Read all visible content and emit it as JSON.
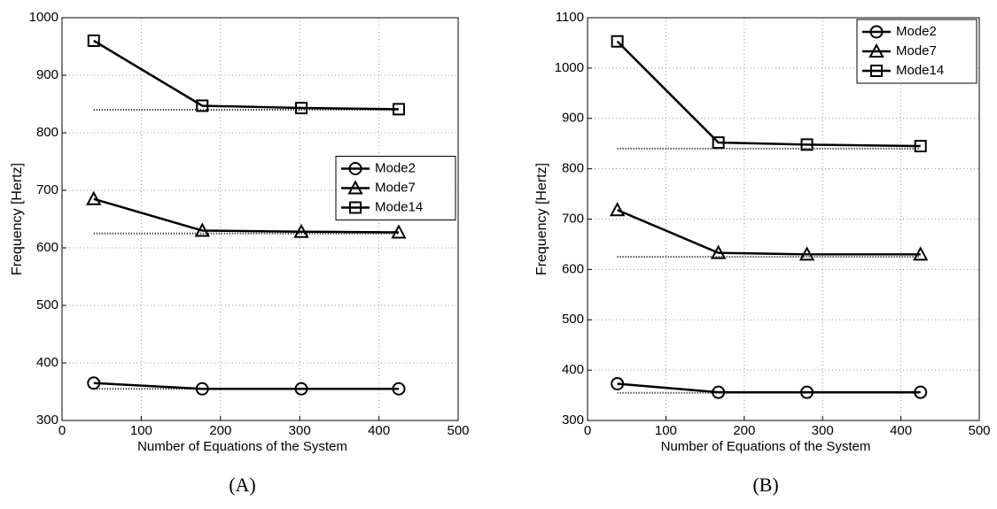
{
  "chart_data": [
    {
      "type": "line",
      "caption": "(A)",
      "x_label": "Number of Equations of the System",
      "y_label": "Frequency [Hertz]",
      "x": [
        40,
        177,
        302,
        425
      ],
      "xlim": [
        0,
        500
      ],
      "xticks": [
        0,
        100,
        200,
        300,
        400,
        500
      ],
      "ylim": [
        300,
        1000
      ],
      "yticks": [
        300,
        400,
        500,
        600,
        700,
        800,
        900,
        1000
      ],
      "grid": true,
      "legend": "center right",
      "series": [
        {
          "name": "Mode2",
          "marker": "circle",
          "color": "#000000",
          "values": [
            365,
            355,
            355,
            355
          ]
        },
        {
          "name": "Mode7",
          "marker": "triangle",
          "color": "#000000",
          "values": [
            685,
            630,
            628,
            627
          ]
        },
        {
          "name": "Mode14",
          "marker": "square",
          "color": "#000000",
          "values": [
            960,
            847,
            843,
            841
          ]
        },
        {
          "style": "dotted",
          "color": "#000000",
          "x": [
            40,
            425
          ],
          "values": [
            355,
            355
          ]
        },
        {
          "style": "dotted",
          "color": "#000000",
          "x": [
            40,
            425
          ],
          "values": [
            625,
            625
          ]
        },
        {
          "style": "dotted",
          "color": "#000000",
          "x": [
            40,
            425
          ],
          "values": [
            840,
            840
          ]
        }
      ]
    },
    {
      "type": "line",
      "caption": "(B)",
      "x_label": "Number of Equations of the System",
      "y_label": "Frequency [Hertz]",
      "x": [
        38,
        167,
        280,
        425
      ],
      "xlim": [
        0,
        500
      ],
      "xticks": [
        0,
        100,
        200,
        300,
        400,
        500
      ],
      "ylim": [
        300,
        1100
      ],
      "yticks": [
        300,
        400,
        500,
        600,
        700,
        800,
        900,
        1000,
        1100
      ],
      "grid": true,
      "legend": "upper right",
      "series": [
        {
          "name": "Mode2",
          "marker": "circle",
          "color": "#000000",
          "values": [
            373,
            356,
            356,
            356
          ]
        },
        {
          "name": "Mode7",
          "marker": "triangle",
          "color": "#000000",
          "values": [
            718,
            633,
            630,
            630
          ]
        },
        {
          "name": "Mode14",
          "marker": "square",
          "color": "#000000",
          "values": [
            1053,
            852,
            848,
            845
          ]
        },
        {
          "style": "dotted",
          "color": "#000000",
          "x": [
            38,
            425
          ],
          "values": [
            355,
            355
          ]
        },
        {
          "style": "dotted",
          "color": "#000000",
          "x": [
            38,
            425
          ],
          "values": [
            625,
            625
          ]
        },
        {
          "style": "dotted",
          "color": "#000000",
          "x": [
            38,
            425
          ],
          "values": [
            840,
            840
          ]
        }
      ]
    }
  ]
}
